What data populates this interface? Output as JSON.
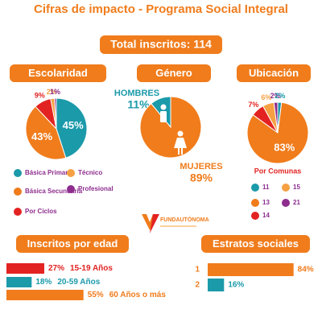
{
  "title": "Cifras de impacto - Programa Social Integral",
  "total": "Total inscritos: 114",
  "logo": "FUNDAUTÓNOMA",
  "chart_data": [
    {
      "type": "pie",
      "title": "Escolaridad",
      "categories": [
        "Básica Primaria",
        "Básica Secundaria",
        "Por Ciclos",
        "Técnico",
        "Profesional"
      ],
      "values": [
        45,
        43,
        9,
        2,
        1
      ],
      "value_labels": [
        "45%",
        "43%",
        "9%",
        "2%",
        "1%"
      ],
      "colors": [
        "#1b9aaa",
        "#f07c1c",
        "#e32322",
        "#f5a043",
        "#8e2d8e"
      ]
    },
    {
      "type": "pie",
      "title": "Género",
      "categories": [
        "HOMBRES",
        "MUJERES"
      ],
      "values": [
        11,
        89
      ],
      "value_labels": [
        "11%",
        "89%"
      ],
      "colors": [
        "#1b9aaa",
        "#f07c1c"
      ]
    },
    {
      "type": "pie",
      "title": "Ubicación",
      "legend_title": "Por Comunas",
      "categories": [
        "14",
        "15",
        "21",
        "11",
        "13"
      ],
      "values": [
        7,
        6,
        2,
        2,
        83
      ],
      "value_labels": [
        "7%",
        "6%",
        "2%",
        "2%",
        "83%"
      ],
      "colors": [
        "#e32322",
        "#f5a043",
        "#8e2d8e",
        "#1b9aaa",
        "#f07c1c"
      ]
    },
    {
      "type": "bar",
      "orientation": "horizontal",
      "title": "Inscritos por edad",
      "categories": [
        "15-19 Años",
        "20-59 Años",
        "60 Años o más"
      ],
      "values": [
        27,
        18,
        55
      ],
      "value_labels": [
        "27%",
        "18%",
        "55%"
      ],
      "colors": [
        "#e32322",
        "#1b9aaa",
        "#f07c1c"
      ]
    },
    {
      "type": "bar",
      "orientation": "horizontal",
      "title": "Estratos sociales",
      "categories": [
        "1",
        "2"
      ],
      "values": [
        84,
        16
      ],
      "value_labels": [
        "84%",
        "16%"
      ],
      "colors": [
        "#f07c1c",
        "#1b9aaa"
      ]
    }
  ]
}
